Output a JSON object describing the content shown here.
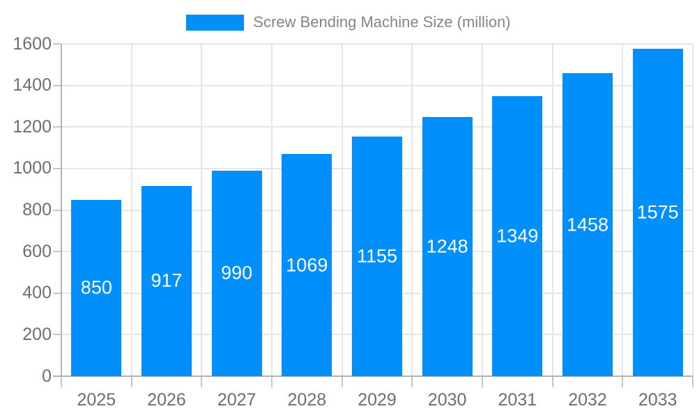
{
  "chart_data": {
    "type": "bar",
    "title": "Screw Bending Machine Size (million)",
    "legend": {
      "position": "top",
      "label": "Screw Bending Machine Size (million)"
    },
    "categories": [
      "2025",
      "2026",
      "2027",
      "2028",
      "2029",
      "2030",
      "2031",
      "2032",
      "2033"
    ],
    "values": [
      850,
      917,
      990,
      1069,
      1155,
      1248,
      1349,
      1458,
      1575
    ],
    "value_labels_shown": true,
    "xlabel": "",
    "ylabel": "",
    "ylim": [
      0,
      1600
    ],
    "ytick_step": 200,
    "ytick_labels": [
      "0",
      "200",
      "400",
      "600",
      "800",
      "1000",
      "1200",
      "1400",
      "1600"
    ],
    "grid": true,
    "colors": {
      "bar": "#008FFB",
      "value_label": "#ffffff",
      "axis_tick_label": "#6e6e6e",
      "legend_text": "#858585",
      "gridline": "#e5e5e5",
      "axis_line": "#b3b3b3",
      "tick_mark": "#c6c6c6",
      "background": "#ffffff"
    }
  }
}
